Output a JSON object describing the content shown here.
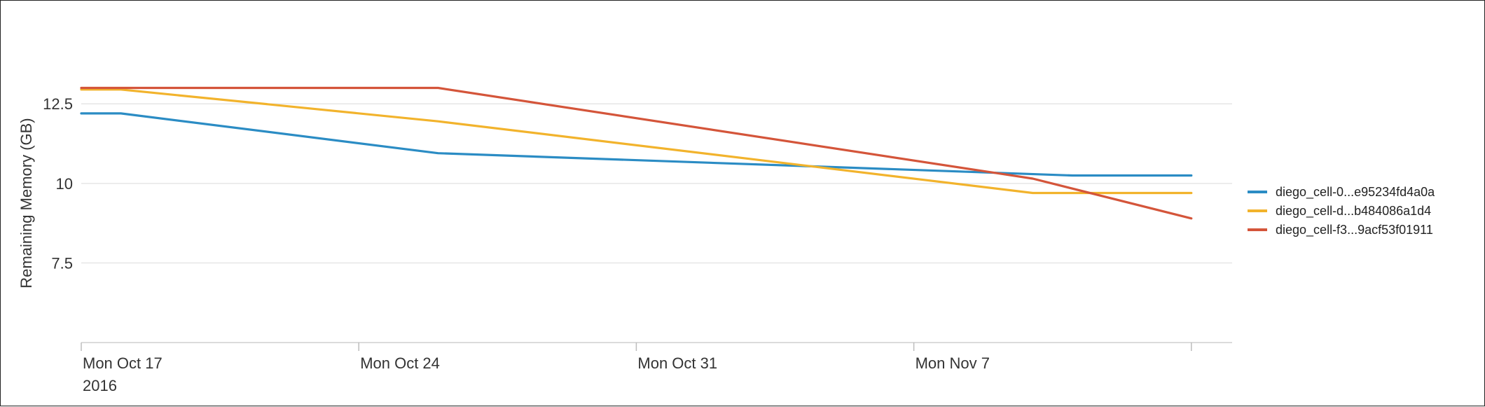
{
  "chart_data": {
    "type": "line",
    "ylabel": "Remaining Memory (GB)",
    "y_ticks": [
      7.5,
      10,
      12.5
    ],
    "y_tick_labels": [
      "7.5",
      "10",
      "12.5"
    ],
    "ylim": [
      5,
      14.2
    ],
    "xlim": [
      "2016-10-17",
      "2016-11-17"
    ],
    "x_ticks": [
      "2016-10-17",
      "2016-10-24",
      "2016-10-31",
      "2016-11-07",
      "2016-11-14"
    ],
    "x_tick_labels": [
      "Mon Oct 17",
      "Mon Oct 24",
      "Mon Oct 31",
      "Mon Nov 7",
      ""
    ],
    "x_tick_sublabel": "2016",
    "grid": "horizontal",
    "legend_position": "right",
    "series": [
      {
        "name": "diego_cell-0...e95234fd4a0a",
        "color": "#2b8cc4",
        "points": [
          [
            "2016-10-17",
            12.2
          ],
          [
            "2016-10-18",
            12.2
          ],
          [
            "2016-10-26",
            10.95
          ],
          [
            "2016-11-11",
            10.25
          ],
          [
            "2016-11-14",
            10.25
          ]
        ]
      },
      {
        "name": "diego_cell-d...b484086a1d4",
        "color": "#f2b32c",
        "points": [
          [
            "2016-10-17",
            12.95
          ],
          [
            "2016-10-18",
            12.95
          ],
          [
            "2016-10-26",
            11.95
          ],
          [
            "2016-11-10",
            9.7
          ],
          [
            "2016-11-14",
            9.7
          ]
        ]
      },
      {
        "name": "diego_cell-f3...9acf53f01911",
        "color": "#d4553a",
        "points": [
          [
            "2016-10-17",
            13.0
          ],
          [
            "2016-10-26",
            13.0
          ],
          [
            "2016-11-10",
            10.15
          ],
          [
            "2016-11-14",
            8.9
          ]
        ]
      }
    ]
  }
}
